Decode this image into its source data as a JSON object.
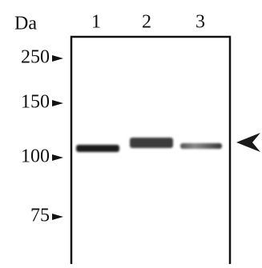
{
  "header": {
    "unit": "Da",
    "lanes": [
      "1",
      "2",
      "3"
    ]
  },
  "markers": [
    "250",
    "150",
    "100",
    "75"
  ]
}
